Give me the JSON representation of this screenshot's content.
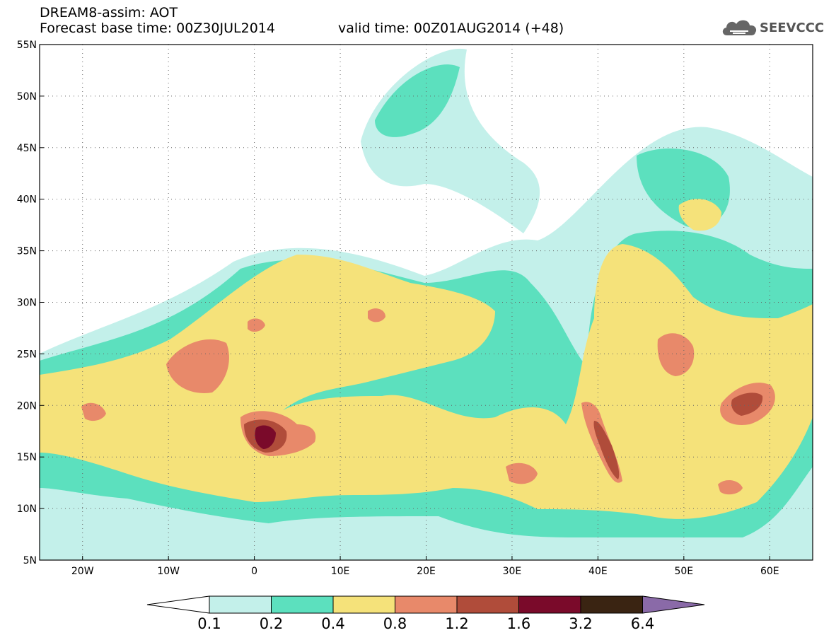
{
  "header": {
    "title": "DREAM8-assim: AOT",
    "base_time": "Forecast base time: 00Z30JUL2014",
    "valid_time": "valid time: 00Z01AUG2014 (+48)",
    "logo_text": "SEEVCCC"
  },
  "map": {
    "lon_range": [
      -25,
      65
    ],
    "lat_range": [
      5,
      55
    ],
    "lat_labels": [
      "55N",
      "50N",
      "45N",
      "40N",
      "35N",
      "30N",
      "25N",
      "20N",
      "15N",
      "10N",
      "5N"
    ],
    "lon_labels": [
      "20W",
      "10W",
      "0",
      "10E",
      "20E",
      "30E",
      "40E",
      "50E",
      "60E"
    ],
    "gridlines": "dotted"
  },
  "colorbar": {
    "labels": [
      "0.1",
      "0.2",
      "0.4",
      "0.8",
      "1.2",
      "1.6",
      "3.2",
      "6.4"
    ],
    "colors": [
      "#ffffff",
      "#c3f0ea",
      "#5ce0be",
      "#f5e27a",
      "#e8896a",
      "#b04c3a",
      "#7a0a2a",
      "#3a2412",
      "#8a6aa8"
    ]
  }
}
